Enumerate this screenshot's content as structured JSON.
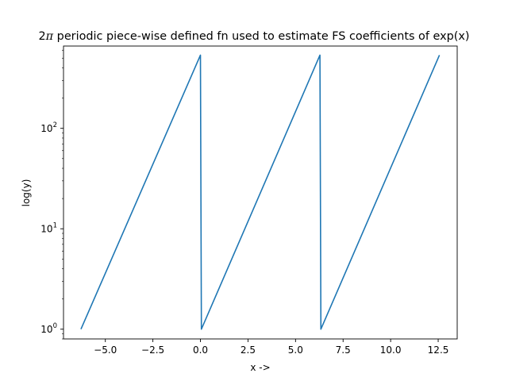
{
  "chart_data": {
    "type": "line",
    "title_prefix": "2",
    "title_pi": "π",
    "title_rest": " periodic piece-wise defined fn used to estimate FS coefficients of exp(x)",
    "xlabel": "x ->",
    "ylabel": "log(y)",
    "yscale": "log",
    "xlim": [
      -7.2,
      13.5
    ],
    "ylim": [
      0.8,
      660
    ],
    "grid": false,
    "x_ticks": [
      {
        "value": -5.0,
        "label": "−5.0"
      },
      {
        "value": -2.5,
        "label": "−2.5"
      },
      {
        "value": 0.0,
        "label": "0.0"
      },
      {
        "value": 2.5,
        "label": "2.5"
      },
      {
        "value": 5.0,
        "label": "5.0"
      },
      {
        "value": 7.5,
        "label": "7.5"
      },
      {
        "value": 10.0,
        "label": "10.0"
      },
      {
        "value": 12.5,
        "label": "12.5"
      }
    ],
    "y_ticks": [
      {
        "value": 1,
        "base": "10",
        "exp": "0"
      },
      {
        "value": 10,
        "base": "10",
        "exp": "1"
      },
      {
        "value": 100,
        "base": "10",
        "exp": "2"
      }
    ],
    "series": [
      {
        "color": "#1f77b4",
        "x": [
          -6.283,
          0.0,
          0.05,
          6.283,
          6.333,
          12.566
        ],
        "y": [
          1.0,
          535.5,
          1.0,
          535.5,
          1.0,
          535.5
        ]
      }
    ]
  }
}
